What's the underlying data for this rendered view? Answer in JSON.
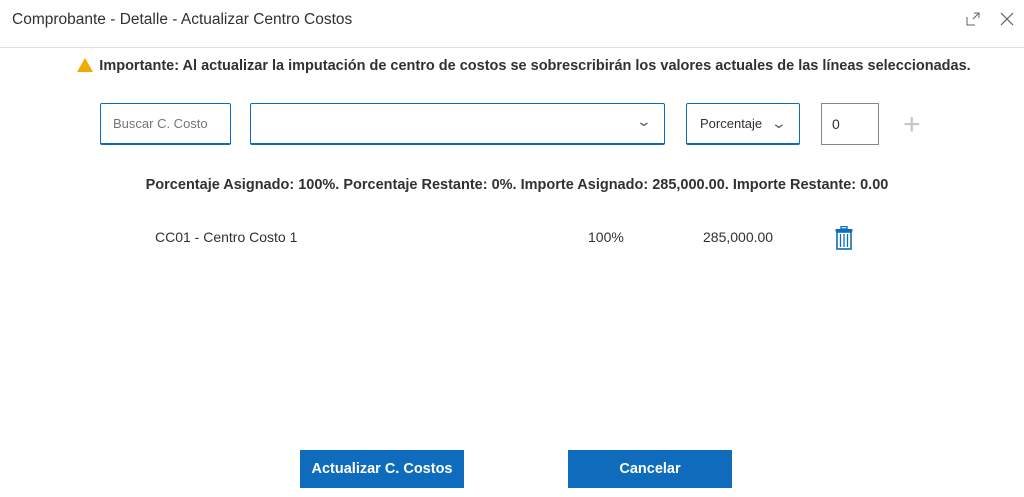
{
  "dialog": {
    "title": "Comprobante - Detalle - Actualizar Centro Costos",
    "icons": [
      "expand-icon",
      "close-icon"
    ]
  },
  "warning": {
    "icon": "warning-icon",
    "text": "Importante: Al actualizar la imputación de centro de costos se sobrescribirán los valores actuales de las líneas seleccionadas."
  },
  "form": {
    "search_placeholder": "Buscar C. Costo",
    "cost_center_value": "",
    "type_value": "Porcentaje",
    "amount_value": "0",
    "add_icon": "plus-icon"
  },
  "summary": "Porcentaje Asignado: 100%. Porcentaje Restante: 0%. Importe Asignado: 285,000.00. Importe Restante: 0.00",
  "rows": [
    {
      "cost_center": "CC01 - Centro Costo 1",
      "percent": "100%",
      "amount": "285,000.00"
    }
  ],
  "colors": {
    "accent": "#0f6cbd",
    "warning": "#f2a900"
  },
  "buttons": {
    "update": "Actualizar C. Costos",
    "cancel": "Cancelar"
  }
}
